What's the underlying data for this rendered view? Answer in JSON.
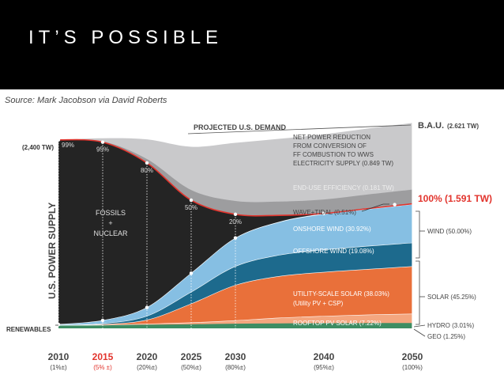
{
  "slide": {
    "title": "IT’S POSSIBLE",
    "source": "Source: Mark Jacobson via David Roberts"
  },
  "colors": {
    "header_bg": "#000000",
    "bau": "#c9c9cb",
    "efficiency": "#9d9d9f",
    "fossil": "#242424",
    "wave_tidal": "#c0ddef",
    "onshore": "#86bfe3",
    "offshore": "#1d6a8d",
    "utility_solar": "#e9703a",
    "rooftop": "#f4a67f",
    "hydro": "#3d8d63",
    "red_accent": "#e2342d",
    "dark_text": "#333333"
  },
  "chart_data": {
    "type": "area",
    "title": "PROJECTED U.S. DEMAND",
    "ylabel": "U.S. POWER SUPPLY",
    "x": [
      2010,
      2015,
      2020,
      2025,
      2030,
      2035,
      2040,
      2045,
      2050
    ],
    "ylim": [
      0,
      2.7
    ],
    "fossil_share_labels": [
      {
        "year": 2010,
        "label": "99%"
      },
      {
        "year": 2015,
        "label": "95%"
      },
      {
        "year": 2020,
        "label": "80%"
      },
      {
        "year": 2025,
        "label": "50%"
      },
      {
        "year": 2030,
        "label": "20%"
      }
    ],
    "series": [
      {
        "name": "ROOFTOP PV SOLAR (7.22%)",
        "values": [
          0.0,
          0.0,
          0.01,
          0.02,
          0.04,
          0.07,
          0.09,
          0.105,
          0.115
        ]
      },
      {
        "name": "UTILITY-SCALE SOLAR (38.03%) (Utility PV + CSP)",
        "values": [
          0.0,
          0.01,
          0.05,
          0.24,
          0.45,
          0.53,
          0.56,
          0.58,
          0.605
        ]
      },
      {
        "name": "OFFSHORE WIND (19.08%)",
        "values": [
          0.0,
          0.01,
          0.05,
          0.15,
          0.24,
          0.27,
          0.285,
          0.295,
          0.3
        ]
      },
      {
        "name": "ONSHORE WIND (30.92%)",
        "values": [
          0.01,
          0.04,
          0.11,
          0.24,
          0.36,
          0.42,
          0.455,
          0.47,
          0.49
        ]
      },
      {
        "name": "WAVE+TIDAL (0.51%)",
        "values": [
          0.0,
          0.0,
          0.0,
          0.0,
          0.003,
          0.006,
          0.008,
          0.008,
          0.008
        ]
      },
      {
        "name": "HYDRO (3.01%)",
        "values": [
          0.035,
          0.035,
          0.038,
          0.04,
          0.044,
          0.046,
          0.047,
          0.048,
          0.048
        ]
      },
      {
        "name": "GEO (1.25%)",
        "values": [
          0.005,
          0.006,
          0.008,
          0.012,
          0.015,
          0.017,
          0.018,
          0.019,
          0.02
        ]
      },
      {
        "name": "FOSSILS + NUCLEAR",
        "values": [
          2.35,
          2.27,
          1.84,
          0.93,
          0.3,
          0.08,
          0.0,
          0.0,
          0.0
        ]
      },
      {
        "name": "END-USE EFFICIENCY (0.181 TW)",
        "values": [
          0.0,
          0.01,
          0.05,
          0.13,
          0.17,
          0.175,
          0.178,
          0.18,
          0.181
        ]
      },
      {
        "name": "NET POWER REDUCTION FROM CONVERSION OF FF COMBUSTION TO WWS ELECTRICITY SUPPLY (0.849 TW)",
        "values": [
          0.0,
          0.04,
          0.25,
          0.55,
          0.74,
          0.8,
          0.83,
          0.84,
          0.849
        ]
      }
    ],
    "totals": {
      "bau": {
        "year": 2050,
        "value": 2.621
      },
      "wws": {
        "year": 2050,
        "value": 1.591
      },
      "start": {
        "year": 2010,
        "value": 2.4
      }
    },
    "labels": {
      "start_tw": "(2,400 TW)",
      "demand": "PROJECTED U.S. DEMAND",
      "bau_name": "B.A.U.",
      "bau_value": "(2.621 TW)",
      "net_reduction": [
        "NET POWER REDUCTION",
        "FROM CONVERSION OF",
        "FF COMBUSTION TO WWS",
        "ELECTRICITY SUPPLY (0.849 TW)"
      ],
      "efficiency": "END-USE EFFICIENCY (0.181 TW)",
      "wws_total": "100% (1.591 TW)",
      "fossils": "FOSSILS",
      "plus": "+",
      "nuclear": "NUCLEAR",
      "wave_tidal": "WAVE+TIDAL (0.51%)",
      "onshore": "ONSHORE WIND (30.92%)",
      "offshore": "OFFSHORE WIND (19.08%)",
      "utility_1": "UTILITY-SCALE SOLAR (38.03%)",
      "utility_2": "(Utility PV + CSP)",
      "rooftop": "ROOFTOP PV SOLAR (7.22%)",
      "renewables": "RENEWABLES",
      "ylabel": "U.S. POWER SUPPLY"
    },
    "right_groups": [
      {
        "label": "WIND (50.00%)"
      },
      {
        "label": "SOLAR (45.25%)"
      },
      {
        "label": "HYDRO (3.01%)"
      },
      {
        "label": "GEO (1.25%)"
      }
    ],
    "x_ticks": [
      {
        "year": 2010,
        "label": "2010",
        "sub": "(1%±)",
        "highlight": false
      },
      {
        "year": 2015,
        "label": "2015",
        "sub": "(5% ±)",
        "highlight": true
      },
      {
        "year": 2020,
        "label": "2020",
        "sub": "(20%±)",
        "highlight": false
      },
      {
        "year": 2025,
        "label": "2025",
        "sub": "(50%±)",
        "highlight": false
      },
      {
        "year": 2030,
        "label": "2030",
        "sub": "(80%±)",
        "highlight": false
      },
      {
        "year": 2040,
        "label": "2040",
        "sub": "(95%±)",
        "highlight": false
      },
      {
        "year": 2050,
        "label": "2050",
        "sub": "(100%)",
        "highlight": false
      }
    ]
  }
}
